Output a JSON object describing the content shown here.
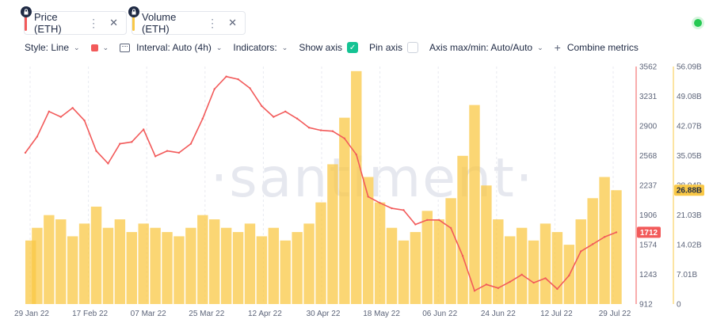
{
  "metric_tabs": [
    {
      "label": "Price (ETH)",
      "color": "#f25a5a",
      "icons": [
        "lock-icon",
        "more-icon",
        "close-icon"
      ]
    },
    {
      "label": "Volume (ETH)",
      "color": "#f9c846",
      "icons": [
        "lock-icon",
        "more-icon",
        "close-icon"
      ]
    }
  ],
  "toolbar": {
    "style": "Style: Line",
    "interval": "Interval: Auto (4h)",
    "indicators": "Indicators:",
    "show_axis": "Show axis",
    "show_axis_checked": true,
    "pin_axis": "Pin axis",
    "pin_axis_checked": false,
    "axis_maxmin": "Axis max/min: Auto/Auto",
    "combine": "Combine metrics"
  },
  "watermark": "·santiment·",
  "status_color": "#26c953",
  "chart_data": {
    "type": "line",
    "x_labels": [
      "29 Jan 22",
      "17 Feb 22",
      "07 Mar 22",
      "25 Mar 22",
      "12 Apr 22",
      "30 Apr 22",
      "18 May 22",
      "06 Jun 22",
      "24 Jun 22",
      "12 Jul 22",
      "29 Jul 22"
    ],
    "price_axis_ticks": [
      "3562",
      "3231",
      "2900",
      "2568",
      "2237",
      "1906",
      "1574",
      "1243",
      "912"
    ],
    "volume_axis_ticks": [
      "56.09B",
      "49.08B",
      "42.07B",
      "35.05B",
      "28.04B",
      "21.03B",
      "14.02B",
      "7.01B",
      "0"
    ],
    "price_ylim": [
      912,
      3562
    ],
    "volume_ylim": [
      0,
      56.09
    ],
    "current_price_label": "1712",
    "current_volume_label": "26.88B",
    "series": [
      {
        "name": "Price (ETH)",
        "color": "#f25a5a",
        "axis": "left",
        "x": [
          "29 Jan 22",
          "02 Feb 22",
          "06 Feb 22",
          "09 Feb 22",
          "13 Feb 22",
          "17 Feb 22",
          "21 Feb 22",
          "24 Feb 22",
          "28 Feb 22",
          "03 Mar 22",
          "07 Mar 22",
          "11 Mar 22",
          "15 Mar 22",
          "19 Mar 22",
          "22 Mar 22",
          "25 Mar 22",
          "29 Mar 22",
          "01 Apr 22",
          "05 Apr 22",
          "08 Apr 22",
          "12 Apr 22",
          "16 Apr 22",
          "20 Apr 22",
          "24 Apr 22",
          "27 Apr 22",
          "30 Apr 22",
          "04 May 22",
          "08 May 22",
          "11 May 22",
          "14 May 22",
          "18 May 22",
          "22 May 22",
          "26 May 22",
          "29 May 22",
          "02 Jun 22",
          "06 Jun 22",
          "10 Jun 22",
          "14 Jun 22",
          "18 Jun 22",
          "21 Jun 22",
          "24 Jun 22",
          "28 Jun 22",
          "02 Jul 22",
          "05 Jul 22",
          "08 Jul 22",
          "12 Jul 22",
          "15 Jul 22",
          "18 Jul 22",
          "22 Jul 22",
          "25 Jul 22",
          "29 Jul 22"
        ],
        "values": [
          2600,
          2780,
          3060,
          3000,
          3100,
          2960,
          2620,
          2480,
          2700,
          2720,
          2860,
          2560,
          2620,
          2600,
          2700,
          2980,
          3310,
          3450,
          3420,
          3320,
          3120,
          3000,
          3060,
          2980,
          2880,
          2850,
          2840,
          2760,
          2580,
          2110,
          2040,
          1980,
          1960,
          1800,
          1850,
          1850,
          1760,
          1450,
          1060,
          1130,
          1090,
          1160,
          1240,
          1150,
          1200,
          1080,
          1230,
          1500,
          1580,
          1660,
          1712
        ]
      },
      {
        "name": "Volume (ETH)",
        "color": "#f9c846",
        "axis": "right",
        "x": [
          "29 Jan 22",
          "02 Feb 22",
          "06 Feb 22",
          "09 Feb 22",
          "13 Feb 22",
          "17 Feb 22",
          "21 Feb 22",
          "24 Feb 22",
          "28 Feb 22",
          "03 Mar 22",
          "07 Mar 22",
          "11 Mar 22",
          "15 Mar 22",
          "19 Mar 22",
          "22 Mar 22",
          "25 Mar 22",
          "29 Mar 22",
          "01 Apr 22",
          "05 Apr 22",
          "08 Apr 22",
          "12 Apr 22",
          "16 Apr 22",
          "20 Apr 22",
          "24 Apr 22",
          "27 Apr 22",
          "30 Apr 22",
          "04 May 22",
          "08 May 22",
          "11 May 22",
          "14 May 22",
          "18 May 22",
          "22 May 22",
          "26 May 22",
          "29 May 22",
          "02 Jun 22",
          "06 Jun 22",
          "10 Jun 22",
          "14 Jun 22",
          "18 Jun 22",
          "21 Jun 22",
          "24 Jun 22",
          "28 Jun 22",
          "02 Jul 22",
          "05 Jul 22",
          "08 Jul 22",
          "12 Jul 22",
          "15 Jul 22",
          "18 Jul 22",
          "22 Jul 22",
          "25 Jul 22",
          "29 Jul 22"
        ],
        "values": [
          15,
          18,
          21,
          20,
          16,
          19,
          23,
          18,
          20,
          17,
          19,
          18,
          17,
          16,
          18,
          21,
          20,
          18,
          17,
          19,
          16,
          18,
          15,
          17,
          19,
          24,
          33,
          44,
          55,
          30,
          24,
          18,
          15,
          17,
          22,
          20,
          25,
          35,
          47,
          28,
          20,
          16,
          18,
          15,
          19,
          17,
          14,
          20,
          25,
          30,
          26.88
        ]
      }
    ],
    "grid": "vertical dashed"
  }
}
